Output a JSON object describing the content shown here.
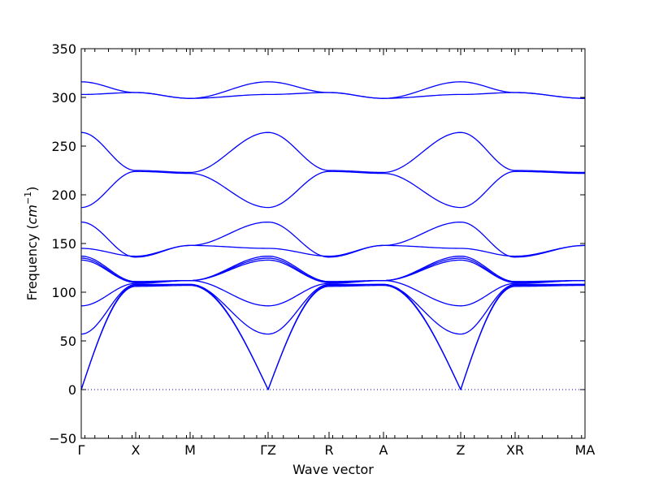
{
  "chart_data": {
    "type": "line",
    "title": "",
    "xlabel": "Wave vector",
    "ylabel_text": "Frequency (",
    "ylabel_unit_base": "cm",
    "ylabel_unit_exp": "−1",
    "ylabel_close": ")",
    "ylim": [
      -50,
      350
    ],
    "yticks": [
      -50,
      0,
      50,
      100,
      150,
      200,
      250,
      300,
      350
    ],
    "ytick_labels": [
      "−50",
      "0",
      "50",
      "100",
      "150",
      "200",
      "250",
      "300",
      "350"
    ],
    "grid": false,
    "line_color": "#0000ff",
    "zero_line": {
      "y": 0,
      "style": "dotted"
    },
    "high_symmetry_points": [
      "Γ",
      "X",
      "M",
      "ΓZ",
      "R",
      "A",
      "Z",
      "XR",
      "MA"
    ],
    "band_labels_note": "",
    "series": [
      {
        "values": [
          0,
          106,
          107,
          0,
          106,
          107,
          0,
          106,
          107
        ]
      },
      {
        "values": [
          0,
          107,
          108,
          0,
          107,
          108,
          0,
          107,
          108
        ]
      },
      {
        "values": [
          57,
          108,
          108,
          57,
          108,
          108,
          57,
          108,
          108
        ]
      },
      {
        "values": [
          86,
          109,
          112,
          86,
          109,
          112,
          86,
          109,
          112
        ]
      },
      {
        "values": [
          133,
          110,
          112,
          133,
          110,
          112,
          133,
          110,
          112
        ]
      },
      {
        "values": [
          135,
          110,
          112,
          135,
          110,
          112,
          135,
          110,
          112
        ]
      },
      {
        "values": [
          137,
          111,
          112,
          137,
          111,
          112,
          137,
          111,
          112
        ]
      },
      {
        "values": [
          145,
          137,
          148,
          145,
          137,
          148,
          145,
          137,
          148
        ]
      },
      {
        "values": [
          172,
          136,
          148,
          172,
          136,
          148,
          172,
          136,
          148
        ]
      },
      {
        "values": [
          187,
          224,
          222,
          187,
          224,
          222,
          187,
          224,
          222
        ]
      },
      {
        "values": [
          264,
          225,
          223,
          264,
          225,
          223,
          264,
          225,
          223
        ]
      },
      {
        "values": [
          303,
          305,
          299,
          303,
          305,
          299,
          303,
          305,
          299
        ]
      },
      {
        "values": [
          316,
          305,
          299,
          316,
          305,
          299,
          316,
          305,
          299
        ]
      }
    ]
  }
}
